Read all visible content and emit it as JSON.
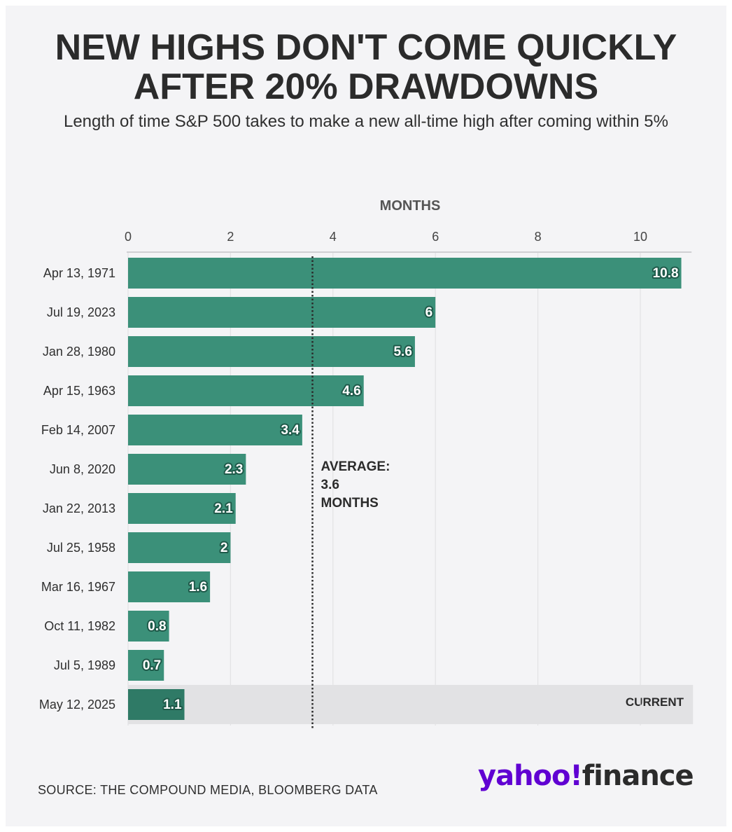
{
  "header": {
    "title_line1": "NEW HIGHS DON'T COME QUICKLY",
    "title_line2": "AFTER 20% DRAWDOWNS",
    "subtitle": "Length of time S&P 500 takes to make a new all-time high after coming within 5%"
  },
  "footer": {
    "source": "SOURCE: THE COMPOUND MEDIA, BLOOMBERG DATA",
    "logo_yahoo": "yahoo!",
    "logo_finance": "finance"
  },
  "colors": {
    "bar": "#3b9079",
    "bar_current": "#2f7a66",
    "current_band": "#e2e2e4",
    "label_stroke": "#1f5a4a",
    "text": "#2f2f2f",
    "grid": "#e2e2e4"
  },
  "chart_data": {
    "type": "bar",
    "orientation": "horizontal",
    "xlabel": "MONTHS",
    "xlim": [
      0,
      11
    ],
    "xticks": [
      0,
      2,
      4,
      6,
      8,
      10
    ],
    "grid": true,
    "categories": [
      "Apr 13, 1971",
      "Jul 19, 2023",
      "Jan 28, 1980",
      "Apr 15, 1963",
      "Feb 14, 2007",
      "Jun 8, 2020",
      "Jan 22, 2013",
      "Jul 25, 1958",
      "Mar 16, 1967",
      "Oct 11, 1982",
      "Jul 5, 1989",
      "May 12, 2025"
    ],
    "values": [
      10.8,
      6,
      5.6,
      4.6,
      3.4,
      2.3,
      2.1,
      2,
      1.6,
      0.8,
      0.7,
      1.1
    ],
    "value_labels": [
      "10.8",
      "6",
      "5.6",
      "4.6",
      "3.4",
      "2.3",
      "2.1",
      "2",
      "1.6",
      "0.8",
      "0.7",
      "1.1"
    ],
    "average": {
      "value": 3.6,
      "label_lines": [
        "AVERAGE:",
        "3.6",
        "MONTHS"
      ]
    },
    "highlight": {
      "category": "May 12, 2025",
      "label": "CURRENT"
    }
  }
}
